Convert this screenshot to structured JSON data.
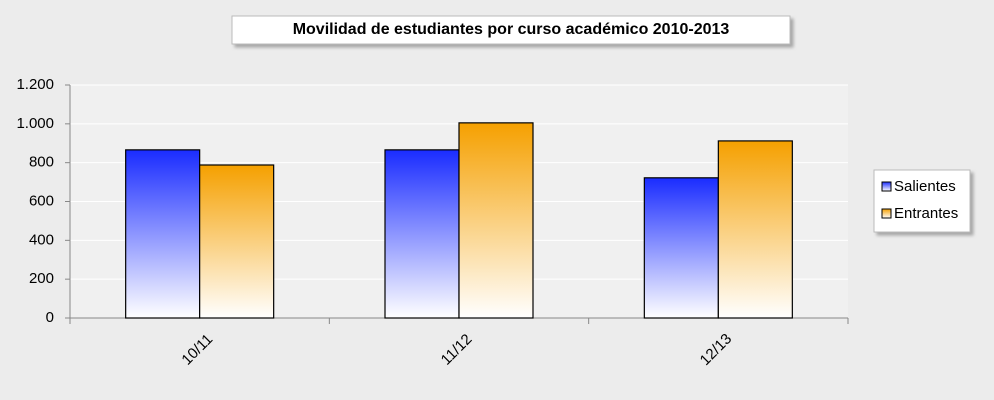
{
  "chart_data": {
    "type": "bar",
    "title": "Movilidad de estudiantes por curso académico 2010-2013",
    "categories": [
      "10/11",
      "11/12",
      "12/13"
    ],
    "series": [
      {
        "name": "Salientes",
        "color": "#1a2cff",
        "values": [
          866,
          866,
          722
        ]
      },
      {
        "name": "Entrantes",
        "color": "#f5a000",
        "values": [
          788,
          1005,
          912
        ]
      }
    ],
    "ylim": [
      0,
      1200
    ],
    "yticks": [
      0,
      200,
      400,
      600,
      800,
      {
        "value": 1000,
        "label": "1.000"
      },
      {
        "value": 1200,
        "label": "1.200"
      }
    ],
    "grid": true,
    "legend": "right"
  }
}
